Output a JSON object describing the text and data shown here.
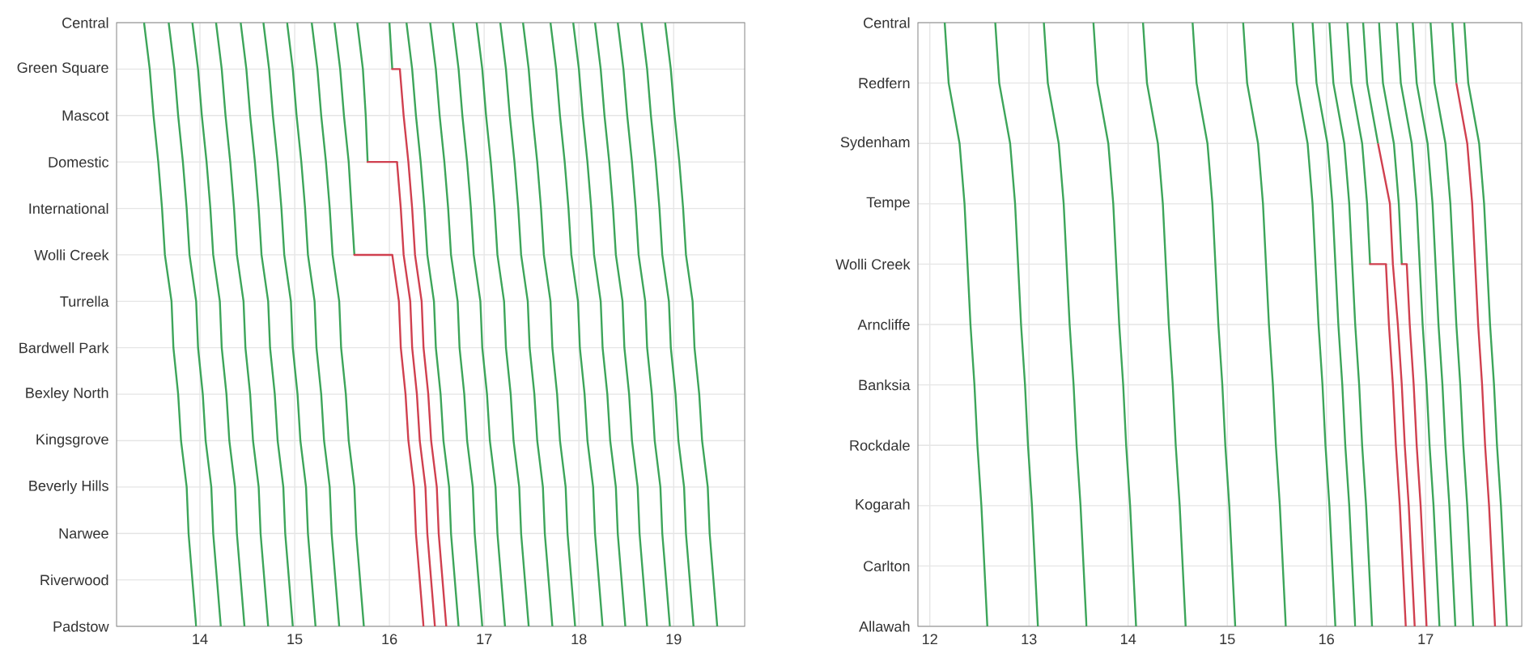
{
  "chart_data": [
    {
      "type": "line",
      "orientation": "horizontal",
      "xlim": [
        13.12,
        19.75
      ],
      "xticks": [
        14,
        15,
        16,
        17,
        18,
        19
      ],
      "categories": [
        "Central",
        "Green Square",
        "Mascot",
        "Domestic",
        "International",
        "Wolli Creek",
        "Turrella",
        "Bardwell Park",
        "Bexley North",
        "Kingsgrove",
        "Beverly Hills",
        "Narwee",
        "Riverwood",
        "Padstow"
      ],
      "grid": true,
      "marker": "none",
      "line_style": "solid",
      "series": [
        {
          "color": "#3da55a",
          "values": [
            13.41,
            13.47,
            13.51,
            13.56,
            13.6,
            13.63,
            13.7,
            13.72,
            13.77,
            13.8,
            13.86,
            13.88,
            13.92,
            13.96
          ]
        },
        {
          "color": "#3da55a",
          "values": [
            13.67,
            13.73,
            13.77,
            13.82,
            13.86,
            13.89,
            13.96,
            13.98,
            14.03,
            14.06,
            14.12,
            14.14,
            14.18,
            14.22
          ]
        },
        {
          "color": "#3da55a",
          "values": [
            13.92,
            13.98,
            14.02,
            14.07,
            14.11,
            14.14,
            14.21,
            14.23,
            14.28,
            14.31,
            14.37,
            14.39,
            14.43,
            14.47
          ]
        },
        {
          "color": "#3da55a",
          "values": [
            14.17,
            14.23,
            14.27,
            14.32,
            14.36,
            14.39,
            14.46,
            14.48,
            14.53,
            14.56,
            14.62,
            14.64,
            14.68,
            14.72
          ]
        },
        {
          "color": "#3da55a",
          "values": [
            14.43,
            14.49,
            14.53,
            14.58,
            14.62,
            14.65,
            14.72,
            14.74,
            14.79,
            14.82,
            14.88,
            14.9,
            14.94,
            14.98
          ]
        },
        {
          "color": "#3da55a",
          "values": [
            14.67,
            14.73,
            14.77,
            14.82,
            14.86,
            14.89,
            14.96,
            14.98,
            15.03,
            15.06,
            15.12,
            15.14,
            15.18,
            15.22
          ]
        },
        {
          "color": "#3da55a",
          "values": [
            14.92,
            14.98,
            15.02,
            15.07,
            15.11,
            15.14,
            15.21,
            15.23,
            15.28,
            15.31,
            15.37,
            15.39,
            15.43,
            15.47
          ]
        },
        {
          "color": "#3da55a",
          "values": [
            15.18,
            15.24,
            15.28,
            15.33,
            15.37,
            15.4,
            15.47,
            15.49,
            15.54,
            15.57,
            15.63,
            15.65,
            15.69,
            15.73
          ]
        },
        {
          "color": "#3da55a",
          "values": [
            15.42,
            15.48,
            15.52,
            15.57,
            15.6,
            15.63,
            null,
            null,
            null,
            null,
            null,
            null,
            null,
            null
          ]
        },
        {
          "color": "#d0404f",
          "values": [
            null,
            null,
            null,
            null,
            null,
            16.03,
            16.1,
            16.12,
            16.17,
            16.2,
            16.26,
            16.28,
            16.32,
            16.36
          ],
          "errors": [
            null,
            null,
            null,
            null,
            null,
            [
              15.63,
              16.03
            ],
            null,
            null,
            null,
            null,
            null,
            null,
            null,
            null
          ]
        },
        {
          "color": "#3da55a",
          "values": [
            15.66,
            15.72,
            15.75,
            15.77,
            null,
            null,
            null,
            null,
            null,
            null,
            null,
            null,
            null,
            null
          ]
        },
        {
          "color": "#d0404f",
          "values": [
            null,
            null,
            null,
            16.08,
            16.12,
            16.15,
            16.22,
            16.24,
            16.29,
            16.32,
            16.38,
            16.4,
            16.44,
            16.48
          ],
          "errors": [
            null,
            null,
            null,
            [
              15.77,
              16.08
            ],
            null,
            null,
            null,
            null,
            null,
            null,
            null,
            null,
            null,
            null
          ]
        },
        {
          "color": "#3da55a",
          "values": [
            16.0,
            16.03,
            null,
            null,
            null,
            null,
            null,
            null,
            null,
            null,
            null,
            null,
            null,
            null
          ]
        },
        {
          "color": "#d0404f",
          "values": [
            null,
            16.11,
            16.15,
            16.2,
            16.24,
            16.27,
            16.34,
            16.36,
            16.41,
            16.44,
            16.5,
            16.52,
            16.56,
            16.6
          ],
          "errors": [
            null,
            [
              16.03,
              16.11
            ],
            null,
            null,
            null,
            null,
            null,
            null,
            null,
            null,
            null,
            null,
            null,
            null
          ]
        },
        {
          "color": "#3da55a",
          "values": [
            16.18,
            16.24,
            16.28,
            16.33,
            16.37,
            16.4,
            16.47,
            16.49,
            16.54,
            16.57,
            16.63,
            16.65,
            16.69,
            16.73
          ]
        },
        {
          "color": "#3da55a",
          "values": [
            16.43,
            16.49,
            16.53,
            16.58,
            16.62,
            16.65,
            16.72,
            16.74,
            16.79,
            16.82,
            16.88,
            16.9,
            16.94,
            16.98
          ]
        },
        {
          "color": "#3da55a",
          "values": [
            16.67,
            16.73,
            16.77,
            16.82,
            16.86,
            16.89,
            16.96,
            16.98,
            17.03,
            17.06,
            17.12,
            17.14,
            17.18,
            17.22
          ]
        },
        {
          "color": "#3da55a",
          "values": [
            16.92,
            16.98,
            17.02,
            17.07,
            17.11,
            17.14,
            17.21,
            17.23,
            17.28,
            17.31,
            17.37,
            17.39,
            17.43,
            17.47
          ]
        },
        {
          "color": "#3da55a",
          "values": [
            17.17,
            17.23,
            17.27,
            17.32,
            17.36,
            17.39,
            17.46,
            17.48,
            17.53,
            17.56,
            17.62,
            17.64,
            17.68,
            17.72
          ]
        },
        {
          "color": "#3da55a",
          "values": [
            17.41,
            17.47,
            17.51,
            17.56,
            17.6,
            17.63,
            17.7,
            17.72,
            17.77,
            17.8,
            17.86,
            17.88,
            17.92,
            17.96
          ]
        },
        {
          "color": "#3da55a",
          "values": [
            17.7,
            17.76,
            17.8,
            17.85,
            17.89,
            17.92,
            17.99,
            18.01,
            18.06,
            18.09,
            18.15,
            18.17,
            18.21,
            18.25
          ]
        },
        {
          "color": "#3da55a",
          "values": [
            17.94,
            18.0,
            18.04,
            18.09,
            18.13,
            18.16,
            18.23,
            18.25,
            18.3,
            18.33,
            18.39,
            18.41,
            18.45,
            18.49
          ]
        },
        {
          "color": "#3da55a",
          "values": [
            18.17,
            18.23,
            18.27,
            18.32,
            18.36,
            18.39,
            18.46,
            18.48,
            18.53,
            18.56,
            18.62,
            18.64,
            18.68,
            18.72
          ]
        },
        {
          "color": "#3da55a",
          "values": [
            18.41,
            18.47,
            18.51,
            18.56,
            18.6,
            18.63,
            18.7,
            18.72,
            18.77,
            18.8,
            18.86,
            18.88,
            18.92,
            18.96
          ]
        },
        {
          "color": "#3da55a",
          "values": [
            18.66,
            18.72,
            18.76,
            18.81,
            18.85,
            18.88,
            18.95,
            18.97,
            19.02,
            19.05,
            19.11,
            19.13,
            19.17,
            19.21
          ]
        },
        {
          "color": "#3da55a",
          "values": [
            18.91,
            18.97,
            19.01,
            19.06,
            19.1,
            19.13,
            19.2,
            19.22,
            19.27,
            19.3,
            19.36,
            19.38,
            19.42,
            19.46
          ]
        }
      ]
    },
    {
      "type": "line",
      "orientation": "horizontal",
      "xlim": [
        11.88,
        17.97
      ],
      "xticks": [
        12,
        13,
        14,
        15,
        16,
        17
      ],
      "categories": [
        "Central",
        "Redfern",
        "Sydenham",
        "Tempe",
        "Wolli Creek",
        "Arncliffe",
        "Banksia",
        "Rockdale",
        "Kogarah",
        "Carlton",
        "Allawah"
      ],
      "grid": true,
      "marker": "none",
      "line_style": "solid",
      "series": [
        {
          "color": "#3da55a",
          "values": [
            12.15,
            12.19,
            12.3,
            12.35,
            12.38,
            12.41,
            12.45,
            12.48,
            12.52,
            12.55,
            12.58
          ]
        },
        {
          "color": "#3da55a",
          "values": [
            12.66,
            12.7,
            12.81,
            12.86,
            12.89,
            12.92,
            12.96,
            12.99,
            13.03,
            13.06,
            13.09
          ]
        },
        {
          "color": "#3da55a",
          "values": [
            13.15,
            13.19,
            13.3,
            13.35,
            13.38,
            13.41,
            13.45,
            13.48,
            13.52,
            13.55,
            13.58
          ]
        },
        {
          "color": "#3da55a",
          "values": [
            13.65,
            13.69,
            13.8,
            13.85,
            13.88,
            13.91,
            13.95,
            13.98,
            14.02,
            14.05,
            14.08
          ]
        },
        {
          "color": "#3da55a",
          "values": [
            14.15,
            14.19,
            14.3,
            14.35,
            14.38,
            14.41,
            14.45,
            14.48,
            14.52,
            14.55,
            14.58
          ]
        },
        {
          "color": "#3da55a",
          "values": [
            14.65,
            14.69,
            14.8,
            14.85,
            14.88,
            14.91,
            14.95,
            14.98,
            15.02,
            15.05,
            15.08
          ]
        },
        {
          "color": "#3da55a",
          "values": [
            15.16,
            15.2,
            15.31,
            15.36,
            15.39,
            15.42,
            15.46,
            15.49,
            15.53,
            15.56,
            15.59
          ]
        },
        {
          "color": "#3da55a",
          "values": [
            15.66,
            15.7,
            15.81,
            15.86,
            15.89,
            15.92,
            15.96,
            15.99,
            16.03,
            16.06,
            16.09
          ]
        },
        {
          "color": "#3da55a",
          "values": [
            15.86,
            15.9,
            16.01,
            16.06,
            16.09,
            16.12,
            16.16,
            16.19,
            16.23,
            16.26,
            16.29
          ]
        },
        {
          "color": "#3da55a",
          "values": [
            16.03,
            16.07,
            16.18,
            16.23,
            16.26,
            16.29,
            16.33,
            16.36,
            16.4,
            16.43,
            16.46
          ]
        },
        {
          "color": "#3da55a",
          "values": [
            16.21,
            16.25,
            16.36,
            16.41,
            16.44,
            null,
            null,
            null,
            null,
            null,
            null
          ]
        },
        {
          "color": "#d0404f",
          "values": [
            null,
            null,
            null,
            null,
            16.6,
            16.63,
            16.67,
            16.7,
            16.74,
            16.77,
            16.8
          ],
          "errors": [
            null,
            null,
            null,
            null,
            [
              16.44,
              16.6
            ],
            null,
            null,
            null,
            null,
            null,
            null
          ]
        },
        {
          "color": "#3da55a",
          "values": [
            16.37,
            16.41,
            16.52,
            null,
            null,
            null,
            null,
            null,
            null,
            null,
            null
          ]
        },
        {
          "color": "#d0404f",
          "values": [
            null,
            null,
            16.52,
            16.64,
            16.67,
            16.72,
            16.76,
            16.79,
            16.83,
            16.86,
            16.89
          ]
        },
        {
          "color": "#3da55a",
          "values": [
            16.53,
            16.57,
            16.68,
            16.73,
            16.76,
            null,
            null,
            null,
            null,
            null,
            null
          ]
        },
        {
          "color": "#d0404f",
          "values": [
            null,
            null,
            null,
            null,
            16.81,
            16.84,
            16.88,
            16.91,
            16.95,
            16.98,
            17.01
          ],
          "errors": [
            null,
            null,
            null,
            null,
            [
              16.76,
              16.81
            ],
            null,
            null,
            null,
            null,
            null,
            null
          ]
        },
        {
          "color": "#3da55a",
          "values": [
            16.71,
            16.75,
            16.86,
            16.91,
            16.94,
            16.97,
            17.01,
            17.04,
            17.08,
            17.11,
            17.14
          ]
        },
        {
          "color": "#3da55a",
          "values": [
            16.87,
            16.91,
            17.02,
            17.07,
            17.1,
            17.13,
            17.17,
            17.2,
            17.24,
            17.27,
            17.3
          ]
        },
        {
          "color": "#3da55a",
          "values": [
            17.05,
            17.09,
            17.2,
            17.25,
            17.28,
            17.31,
            17.35,
            17.38,
            17.42,
            17.45,
            17.48
          ]
        },
        {
          "color": "#3da55a",
          "values": [
            17.27,
            17.31,
            null,
            null,
            null,
            null,
            null,
            null,
            null,
            null,
            null
          ]
        },
        {
          "color": "#d0404f",
          "values": [
            null,
            17.31,
            17.42,
            17.47,
            17.5,
            17.53,
            17.57,
            17.6,
            17.64,
            17.67,
            17.7
          ]
        },
        {
          "color": "#3da55a",
          "values": [
            17.39,
            17.43,
            17.54,
            17.59,
            17.62,
            17.65,
            17.69,
            17.72,
            17.76,
            17.79,
            17.82
          ]
        }
      ]
    }
  ]
}
